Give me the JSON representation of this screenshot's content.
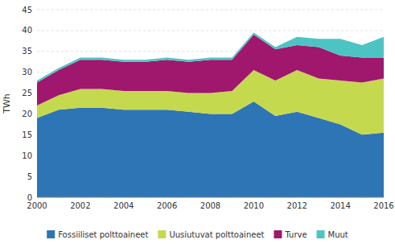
{
  "chart_data": {
    "type": "area",
    "stacked": true,
    "y_label": "TWh",
    "x": [
      2000,
      2001,
      2002,
      2003,
      2004,
      2005,
      2006,
      2007,
      2008,
      2009,
      2010,
      2011,
      2012,
      2013,
      2014,
      2015,
      2016
    ],
    "series": [
      {
        "name": "Fossiiliset polttoaineet",
        "color": "#2E75B6",
        "values": [
          19.0,
          21.0,
          21.5,
          21.5,
          21.0,
          21.0,
          21.0,
          20.5,
          20.0,
          20.0,
          23.0,
          19.5,
          20.5,
          19.0,
          17.5,
          15.0,
          15.5
        ]
      },
      {
        "name": "Uusiutuvat polttoaineet",
        "color": "#C5D94F",
        "values": [
          3.0,
          3.5,
          4.5,
          4.5,
          4.5,
          4.5,
          4.5,
          4.5,
          5.0,
          5.5,
          7.5,
          8.5,
          10.0,
          9.5,
          10.5,
          12.5,
          13.0
        ]
      },
      {
        "name": "Turve",
        "color": "#A0176E",
        "values": [
          5.5,
          6.0,
          7.0,
          7.0,
          7.0,
          7.0,
          7.5,
          7.5,
          8.0,
          7.5,
          8.5,
          7.5,
          6.0,
          7.5,
          6.0,
          6.0,
          5.0
        ]
      },
      {
        "name": "Muut",
        "color": "#4DC4C4",
        "values": [
          0.5,
          0.5,
          0.5,
          0.5,
          0.5,
          0.5,
          0.5,
          0.5,
          0.5,
          0.5,
          0.5,
          0.5,
          2.0,
          2.0,
          4.0,
          3.0,
          5.0
        ]
      }
    ],
    "xlim": [
      2000,
      2016
    ],
    "xticks": [
      2000,
      2002,
      2004,
      2006,
      2008,
      2010,
      2012,
      2014,
      2016
    ],
    "ylim": [
      0,
      45
    ],
    "yticks": [
      0,
      5,
      10,
      15,
      20,
      25,
      30,
      35,
      40,
      45
    ],
    "grid": true,
    "legend": "bottom"
  }
}
